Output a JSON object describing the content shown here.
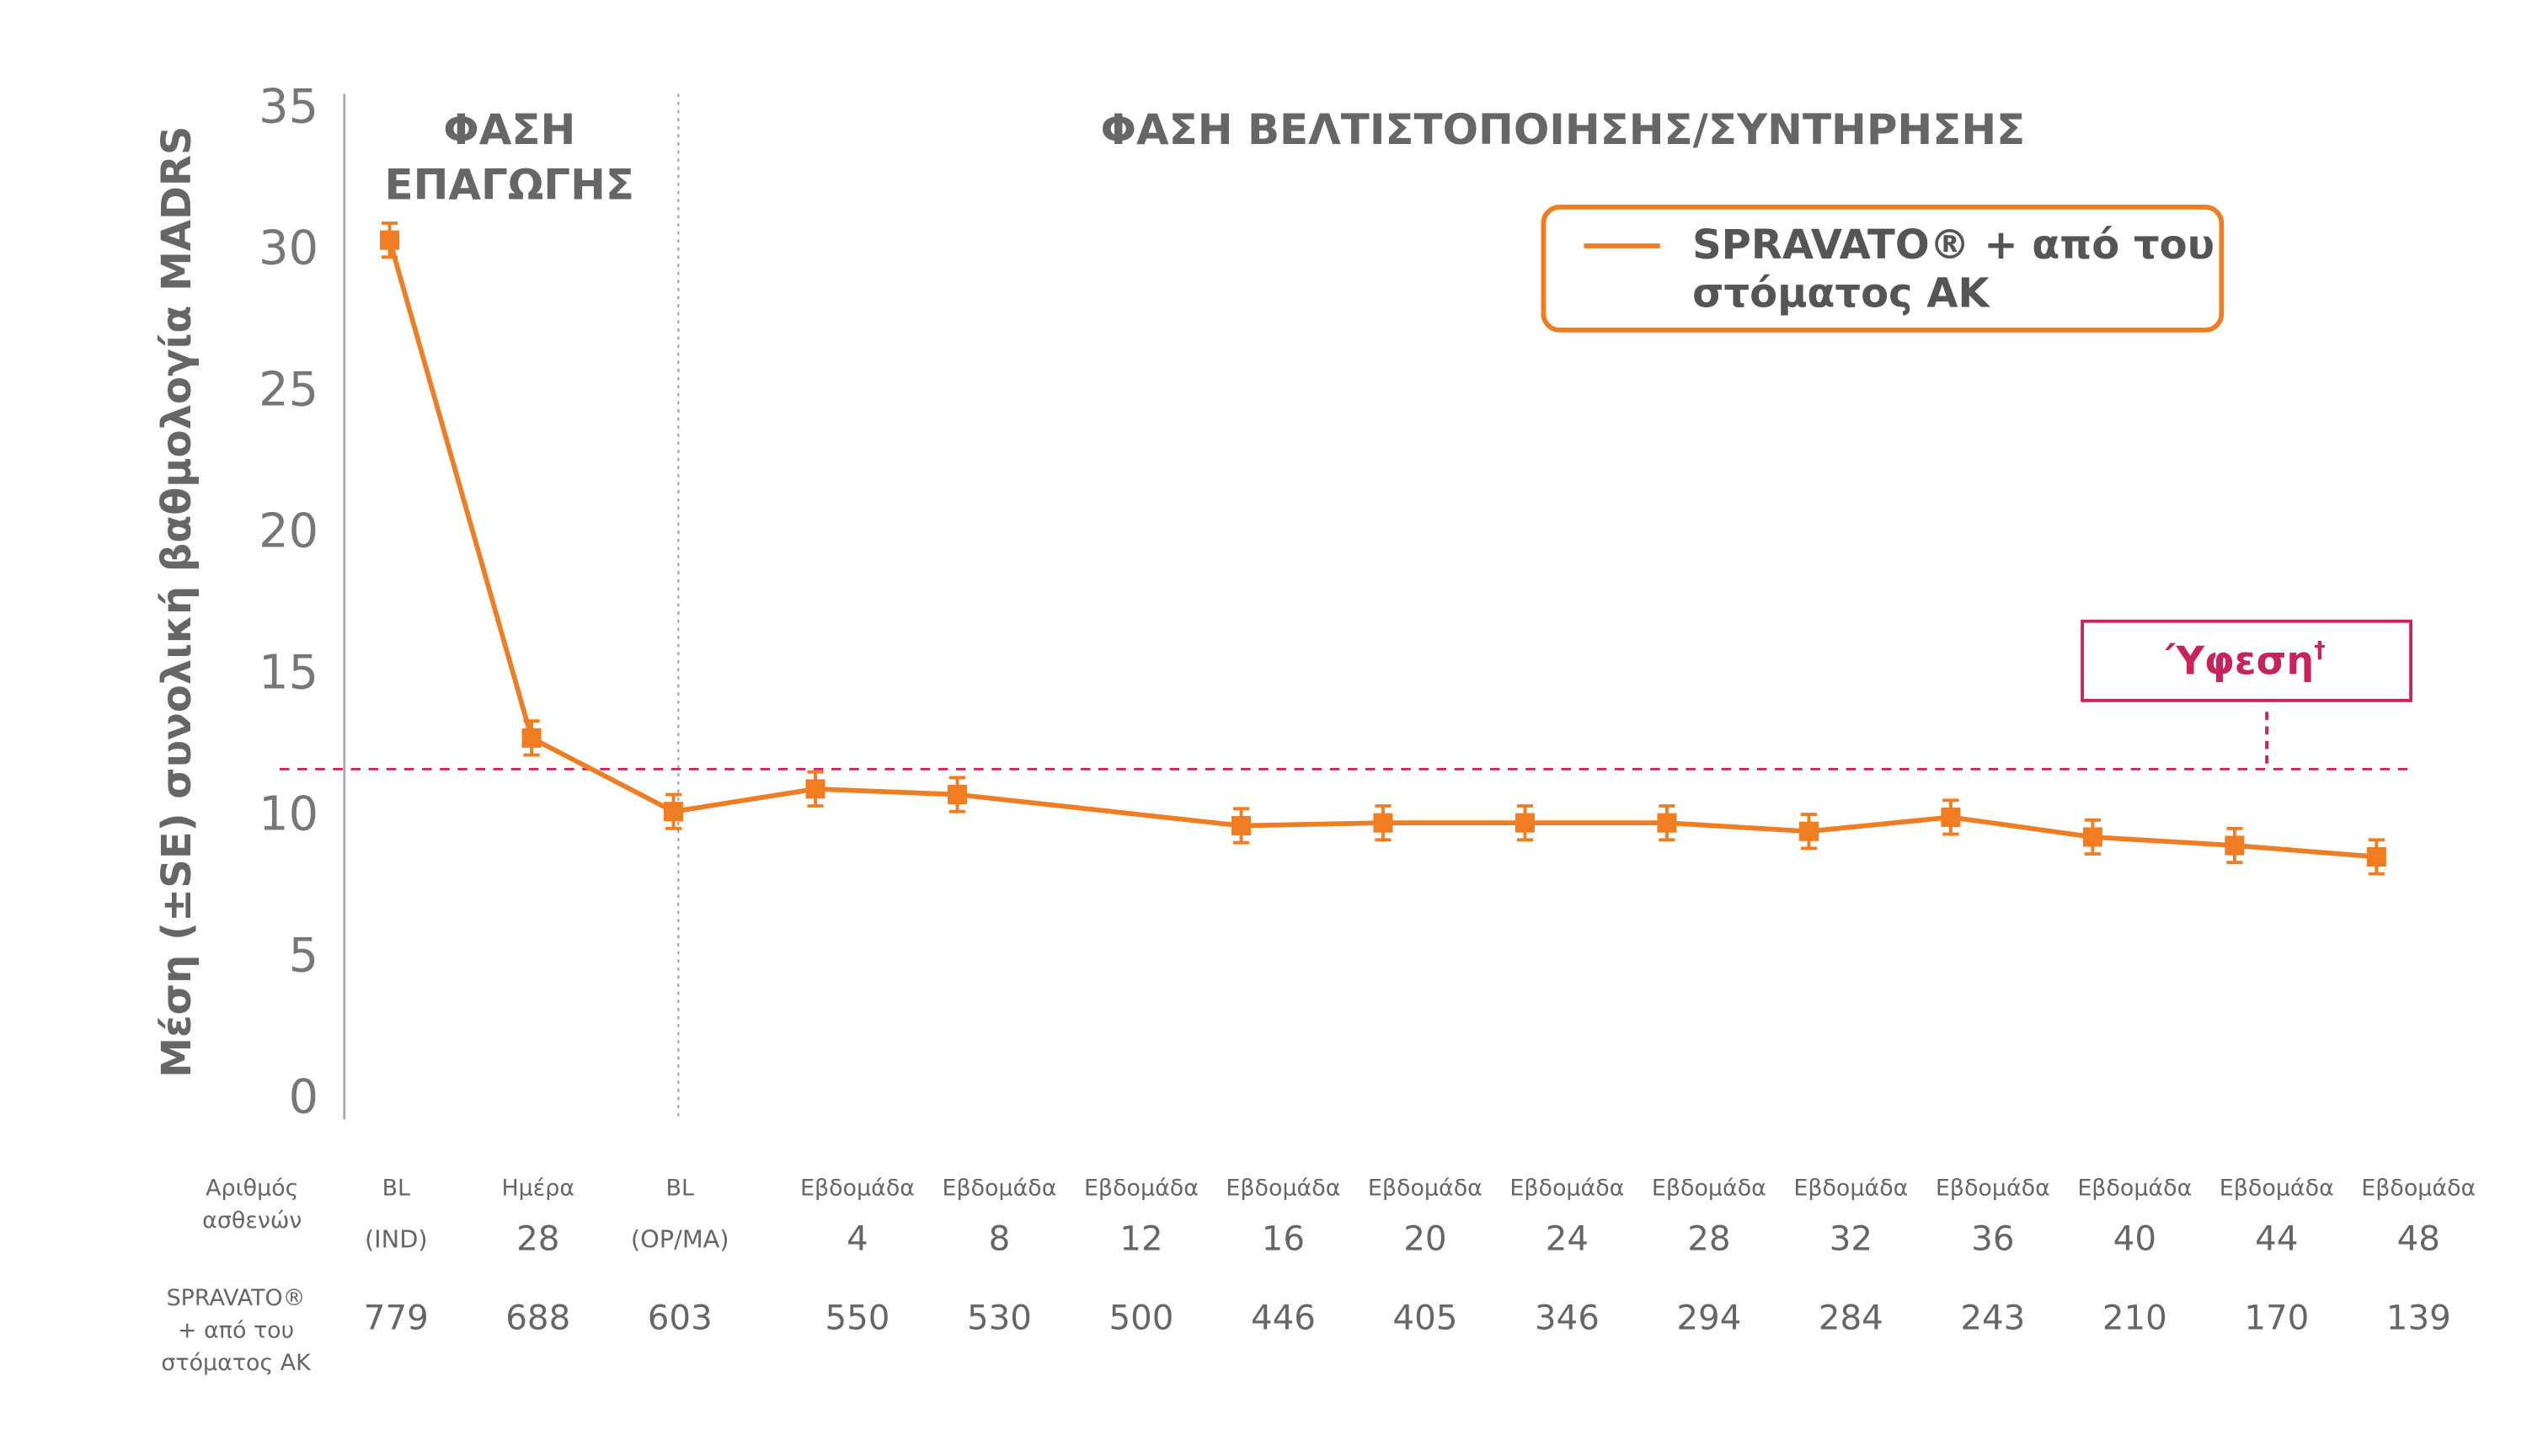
{
  "chart_data": {
    "type": "line",
    "y_label": "Μέση (±SE) συνολική βαθμολογία MADRS",
    "ylim": [
      0,
      35
    ],
    "yticks": [
      0,
      5,
      10,
      15,
      20,
      25,
      30,
      35
    ],
    "categories": [
      [
        "BL",
        "(IND)"
      ],
      [
        "Ημέρα",
        "28"
      ],
      [
        "BL",
        "(OP/MA)"
      ],
      [
        "Εβδομάδα",
        "4"
      ],
      [
        "Εβδομάδα",
        "8"
      ],
      [
        "Εβδομάδα",
        "12"
      ],
      [
        "Εβδομάδα",
        "16"
      ],
      [
        "Εβδομάδα",
        "20"
      ],
      [
        "Εβδομάδα",
        "24"
      ],
      [
        "Εβδομάδα",
        "28"
      ],
      [
        "Εβδομάδα",
        "32"
      ],
      [
        "Εβδομάδα",
        "36"
      ],
      [
        "Εβδομάδα",
        "40"
      ],
      [
        "Εβδομάδα",
        "44"
      ],
      [
        "Εβδομάδα",
        "48"
      ]
    ],
    "series": [
      {
        "name": [
          "SPRAVATO® + από του",
          "στόματος ΑΚ"
        ],
        "color": "#f07d22",
        "values": [
          30.4,
          12.8,
          10.2,
          11.0,
          10.8,
          null,
          9.7,
          9.8,
          9.8,
          9.8,
          9.5,
          10.0,
          9.3,
          9.0,
          8.6
        ],
        "errors": [
          0.6,
          0.6,
          0.6,
          0.6,
          0.6,
          null,
          0.6,
          0.6,
          0.6,
          0.6,
          0.6,
          0.6,
          0.6,
          0.6,
          0.6
        ]
      }
    ],
    "phases": [
      {
        "label": [
          "ΦΑΣΗ",
          "ΕΠΑΓΩΓΗΣ"
        ],
        "boundary": 2
      },
      {
        "label": [
          "ΦΑΣΗ ΒΕΛΤΙΣΤΟΠΟΙΗΣΗΣ/ΣΥΝΤΗΡΗΣΗΣ"
        ]
      }
    ],
    "threshold": {
      "label": "Ύφεση",
      "mark": "†",
      "value": 11.7,
      "color": "#c8235a"
    },
    "n_at_risk": {
      "label": [
        "Αριθμός",
        "ασθενών"
      ],
      "series_label": [
        "SPRAVATO®",
        "+ από του",
        "στόματος ΑΚ"
      ],
      "counts": [
        779,
        688,
        603,
        550,
        530,
        500,
        446,
        405,
        346,
        294,
        284,
        243,
        210,
        170,
        139
      ]
    }
  }
}
